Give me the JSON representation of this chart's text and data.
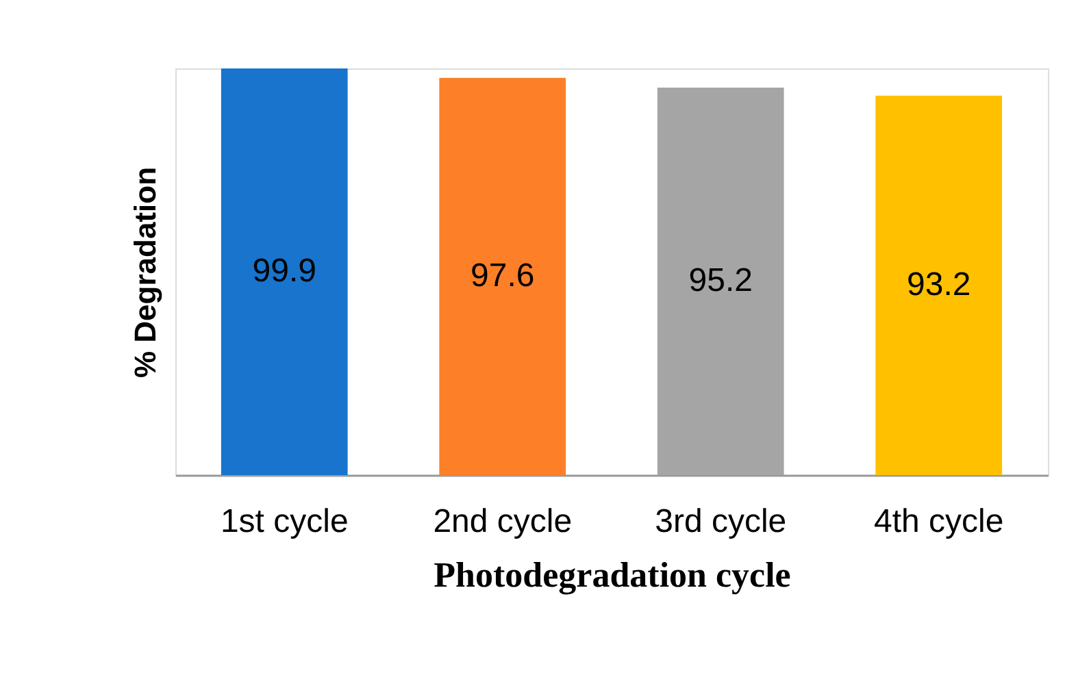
{
  "chart_data": {
    "type": "bar",
    "categories": [
      "1st cycle",
      "2nd cycle",
      "3rd cycle",
      "4th cycle"
    ],
    "values": [
      99.9,
      97.6,
      95.2,
      93.2
    ],
    "colors": [
      "#1874cd",
      "#fd7f27",
      "#a5a5a5",
      "#ffc000"
    ],
    "xlabel": "Photodegradation cycle",
    "ylabel": "% Degradation",
    "data_labels": true
  }
}
